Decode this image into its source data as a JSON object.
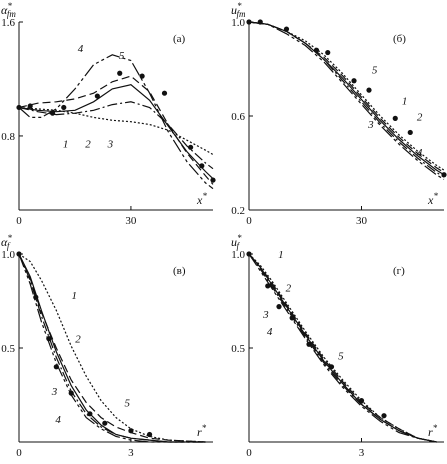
{
  "chart_data": [
    {
      "type": "line",
      "panel_label": "(а)",
      "ylabel": "α*fm",
      "xlabel": "x*",
      "xlim": [
        0,
        52
      ],
      "ylim": [
        0.28,
        1.6
      ],
      "x_ticks": [
        "0",
        "30"
      ],
      "y_ticks": [
        "0.8",
        "1.6"
      ],
      "series": [
        {
          "name": "1",
          "dash": "",
          "x": [
            0,
            5,
            10,
            15,
            20,
            25,
            30,
            35,
            40,
            45,
            50,
            52
          ],
          "y": [
            1.0,
            0.98,
            0.97,
            0.98,
            1.04,
            1.13,
            1.16,
            1.05,
            0.87,
            0.69,
            0.55,
            0.5
          ]
        },
        {
          "name": "2",
          "dash": "10 3 2 3",
          "x": [
            0,
            5,
            10,
            15,
            20,
            25,
            30,
            35,
            40,
            45,
            50,
            52
          ],
          "y": [
            1.0,
            0.97,
            0.95,
            0.96,
            0.98,
            1.02,
            1.04,
            1.0,
            0.88,
            0.73,
            0.61,
            0.57
          ]
        },
        {
          "name": "3",
          "dash": "2 2",
          "x": [
            0,
            5,
            10,
            15,
            20,
            25,
            30,
            35,
            40,
            45,
            50,
            52
          ],
          "y": [
            1.0,
            0.99,
            0.98,
            0.96,
            0.93,
            0.91,
            0.9,
            0.88,
            0.84,
            0.77,
            0.7,
            0.67
          ]
        },
        {
          "name": "4",
          "dash": "14 3 3 3 3 3",
          "x": [
            0,
            3,
            6,
            10,
            15,
            20,
            25,
            30,
            35,
            40,
            45,
            50,
            52
          ],
          "y": [
            1.0,
            0.93,
            0.93,
            0.99,
            1.13,
            1.3,
            1.37,
            1.33,
            1.1,
            0.83,
            0.62,
            0.47,
            0.43
          ]
        },
        {
          "name": "5",
          "dash": "8 4",
          "x": [
            0,
            5,
            10,
            15,
            20,
            25,
            30,
            35,
            40,
            45,
            50,
            52
          ],
          "y": [
            1.0,
            1.03,
            1.04,
            1.06,
            1.1,
            1.18,
            1.22,
            1.11,
            0.88,
            0.68,
            0.52,
            0.46
          ]
        }
      ],
      "points": {
        "x": [
          0,
          3,
          9,
          12,
          21,
          27,
          33,
          39,
          46,
          49,
          52
        ],
        "y": [
          1.0,
          1.01,
          0.96,
          1.0,
          1.08,
          1.24,
          1.22,
          1.1,
          0.72,
          0.59,
          0.49
        ]
      },
      "curve_labels": [
        {
          "text": "1",
          "x": 12.5,
          "y": 0.72
        },
        {
          "text": "2",
          "x": 18.5,
          "y": 0.72
        },
        {
          "text": "3",
          "x": 24.5,
          "y": 0.72
        },
        {
          "text": "4",
          "x": 16.5,
          "y": 1.39
        },
        {
          "text": "5",
          "x": 27.5,
          "y": 1.34
        }
      ]
    },
    {
      "type": "line",
      "panel_label": "(б)",
      "ylabel": "u*fm",
      "xlabel": "x*",
      "xlim": [
        0,
        52
      ],
      "ylim": [
        0.2,
        1.0
      ],
      "x_ticks": [
        "0",
        "30"
      ],
      "y_ticks": [
        "0.2",
        "0.6",
        "1.0"
      ],
      "series": [
        {
          "name": "1",
          "dash": "",
          "x": [
            0,
            5,
            10,
            15,
            20,
            25,
            30,
            35,
            40,
            45,
            50,
            52
          ],
          "y": [
            1.0,
            0.99,
            0.96,
            0.91,
            0.84,
            0.76,
            0.67,
            0.58,
            0.5,
            0.43,
            0.37,
            0.35
          ]
        },
        {
          "name": "2",
          "dash": "2 2",
          "x": [
            0,
            5,
            10,
            15,
            20,
            25,
            30,
            35,
            40,
            45,
            50,
            52
          ],
          "y": [
            1.0,
            0.99,
            0.96,
            0.92,
            0.86,
            0.78,
            0.69,
            0.6,
            0.52,
            0.45,
            0.39,
            0.37
          ]
        },
        {
          "name": "3",
          "dash": "10 3 2 3",
          "x": [
            0,
            5,
            10,
            15,
            20,
            25,
            30,
            35,
            40,
            45,
            50,
            52
          ],
          "y": [
            1.0,
            0.99,
            0.96,
            0.91,
            0.84,
            0.75,
            0.66,
            0.57,
            0.49,
            0.42,
            0.36,
            0.34
          ]
        },
        {
          "name": "4",
          "dash": "14 3 3 3 3 3",
          "x": [
            0,
            5,
            10,
            15,
            20,
            25,
            30,
            35,
            40,
            45,
            50,
            52
          ],
          "y": [
            1.0,
            0.99,
            0.95,
            0.9,
            0.83,
            0.74,
            0.65,
            0.56,
            0.48,
            0.41,
            0.35,
            0.33
          ]
        },
        {
          "name": "5",
          "dash": "8 4",
          "x": [
            0,
            5,
            10,
            15,
            20,
            25,
            30,
            35,
            40,
            45,
            50,
            52
          ],
          "y": [
            1.0,
            0.99,
            0.96,
            0.91,
            0.85,
            0.77,
            0.68,
            0.59,
            0.51,
            0.44,
            0.38,
            0.36
          ]
        }
      ],
      "points": {
        "x": [
          0,
          3,
          10,
          18,
          21,
          28,
          32,
          39,
          43,
          52
        ],
        "y": [
          1.0,
          1.0,
          0.97,
          0.88,
          0.87,
          0.75,
          0.71,
          0.59,
          0.53,
          0.35
        ]
      },
      "curve_labels": [
        {
          "text": "1",
          "x": 41.5,
          "y": 0.65
        },
        {
          "text": "2",
          "x": 45.5,
          "y": 0.58
        },
        {
          "text": "3",
          "x": 32.5,
          "y": 0.55
        },
        {
          "text": "4",
          "x": 45.5,
          "y": 0.43
        },
        {
          "text": "5",
          "x": 33.5,
          "y": 0.78
        }
      ]
    },
    {
      "type": "line",
      "panel_label": "(в)",
      "ylabel": "α*f",
      "xlabel": "r*",
      "xlim": [
        0,
        5.2
      ],
      "ylim": [
        0,
        1.0
      ],
      "x_ticks": [
        "0",
        "3"
      ],
      "y_ticks": [
        "0.5",
        "1.0"
      ],
      "series": [
        {
          "name": "1",
          "dash": "2 2",
          "x": [
            0,
            0.3,
            0.6,
            1.0,
            1.4,
            1.8,
            2.2,
            2.6,
            3.0,
            3.5,
            4.0,
            4.5,
            5.0
          ],
          "y": [
            1.0,
            0.96,
            0.86,
            0.7,
            0.51,
            0.35,
            0.22,
            0.13,
            0.07,
            0.03,
            0.01,
            0.005,
            0.0
          ]
        },
        {
          "name": "2",
          "dash": "",
          "x": [
            0,
            0.3,
            0.6,
            1.0,
            1.4,
            1.8,
            2.2,
            2.6,
            3.0,
            3.5,
            4.0,
            5.0
          ],
          "y": [
            1.0,
            0.88,
            0.7,
            0.48,
            0.3,
            0.17,
            0.09,
            0.04,
            0.02,
            0.01,
            0.0,
            0.0
          ]
        },
        {
          "name": "3",
          "dash": "10 3 2 3",
          "x": [
            0,
            0.3,
            0.6,
            1.0,
            1.4,
            1.8,
            2.2,
            2.6,
            3.0,
            3.5,
            4.0,
            5.0
          ],
          "y": [
            1.0,
            0.86,
            0.67,
            0.45,
            0.27,
            0.15,
            0.08,
            0.04,
            0.02,
            0.01,
            0.0,
            0.0
          ]
        },
        {
          "name": "4",
          "dash": "14 3 3 3 3 3",
          "x": [
            0,
            0.3,
            0.6,
            1.0,
            1.4,
            1.8,
            2.2,
            2.6,
            3.0,
            3.5,
            4.0,
            5.0
          ],
          "y": [
            1.0,
            0.84,
            0.64,
            0.42,
            0.25,
            0.13,
            0.07,
            0.03,
            0.01,
            0.0,
            0.0,
            0.0
          ]
        },
        {
          "name": "5",
          "dash": "8 4",
          "x": [
            0,
            0.3,
            0.6,
            1.0,
            1.4,
            1.8,
            2.2,
            2.6,
            3.0,
            3.5,
            4.0,
            5.0
          ],
          "y": [
            1.0,
            0.87,
            0.69,
            0.5,
            0.33,
            0.21,
            0.13,
            0.08,
            0.05,
            0.02,
            0.01,
            0.0
          ]
        }
      ],
      "points": {
        "x": [
          0,
          0.45,
          0.8,
          1.0,
          1.4,
          1.9,
          2.3,
          3.0,
          3.5
        ],
        "y": [
          1.0,
          0.77,
          0.55,
          0.4,
          0.26,
          0.15,
          0.1,
          0.06,
          0.04
        ]
      },
      "curve_labels": [
        {
          "text": "1",
          "x": 1.48,
          "y": 0.76
        },
        {
          "text": "2",
          "x": 1.58,
          "y": 0.53
        },
        {
          "text": "3",
          "x": 0.95,
          "y": 0.25
        },
        {
          "text": "4",
          "x": 1.05,
          "y": 0.1
        },
        {
          "text": "5",
          "x": 2.9,
          "y": 0.19
        }
      ]
    },
    {
      "type": "line",
      "panel_label": "(г)",
      "ylabel": "u*f",
      "xlabel": "r*",
      "xlim": [
        0,
        5.2
      ],
      "ylim": [
        0,
        1.0
      ],
      "x_ticks": [
        "0",
        "3"
      ],
      "y_ticks": [
        "0.5",
        "1.0"
      ],
      "series": [
        {
          "name": "1",
          "dash": "",
          "x": [
            0,
            0.3,
            0.6,
            1.0,
            1.5,
            2.0,
            2.5,
            3.0,
            3.5,
            4.0,
            4.5,
            5.0
          ],
          "y": [
            1.0,
            0.93,
            0.84,
            0.72,
            0.57,
            0.43,
            0.31,
            0.2,
            0.12,
            0.06,
            0.02,
            0.0
          ]
        },
        {
          "name": "2",
          "dash": "2 2",
          "x": [
            0,
            0.3,
            0.6,
            1.0,
            1.5,
            2.0,
            2.5,
            3.0,
            3.5,
            4.0,
            4.5,
            5.0
          ],
          "y": [
            1.0,
            0.94,
            0.86,
            0.74,
            0.59,
            0.45,
            0.33,
            0.22,
            0.13,
            0.07,
            0.02,
            0.0
          ]
        },
        {
          "name": "3",
          "dash": "10 3 2 3",
          "x": [
            0,
            0.3,
            0.6,
            1.0,
            1.5,
            2.0,
            2.5,
            3.0,
            3.5,
            4.0,
            4.5,
            5.0
          ],
          "y": [
            1.0,
            0.92,
            0.83,
            0.71,
            0.56,
            0.42,
            0.3,
            0.2,
            0.12,
            0.06,
            0.02,
            0.0
          ]
        },
        {
          "name": "4",
          "dash": "14 3 3 3 3 3",
          "x": [
            0,
            0.3,
            0.6,
            1.0,
            1.5,
            2.0,
            2.5,
            3.0,
            3.5,
            4.0,
            4.5,
            5.0
          ],
          "y": [
            1.0,
            0.91,
            0.82,
            0.7,
            0.55,
            0.41,
            0.29,
            0.19,
            0.11,
            0.05,
            0.02,
            0.0
          ]
        },
        {
          "name": "5",
          "dash": "8 4",
          "x": [
            0,
            0.3,
            0.6,
            1.0,
            1.5,
            2.0,
            2.5,
            3.0,
            3.5,
            4.0,
            4.5,
            5.0
          ],
          "y": [
            1.0,
            0.93,
            0.85,
            0.73,
            0.58,
            0.44,
            0.32,
            0.21,
            0.13,
            0.07,
            0.02,
            0.0
          ]
        }
      ],
      "points": {
        "x": [
          0,
          0.5,
          0.8,
          1.15,
          1.6,
          2.2,
          3.0,
          3.6
        ],
        "y": [
          1.0,
          0.83,
          0.72,
          0.66,
          0.52,
          0.4,
          0.22,
          0.14
        ]
      },
      "curve_labels": [
        {
          "text": "1",
          "x": 0.85,
          "y": 0.98
        },
        {
          "text": "2",
          "x": 1.05,
          "y": 0.8
        },
        {
          "text": "3",
          "x": 0.45,
          "y": 0.66
        },
        {
          "text": "4",
          "x": 0.55,
          "y": 0.57
        },
        {
          "text": "5",
          "x": 2.45,
          "y": 0.44
        }
      ]
    }
  ]
}
